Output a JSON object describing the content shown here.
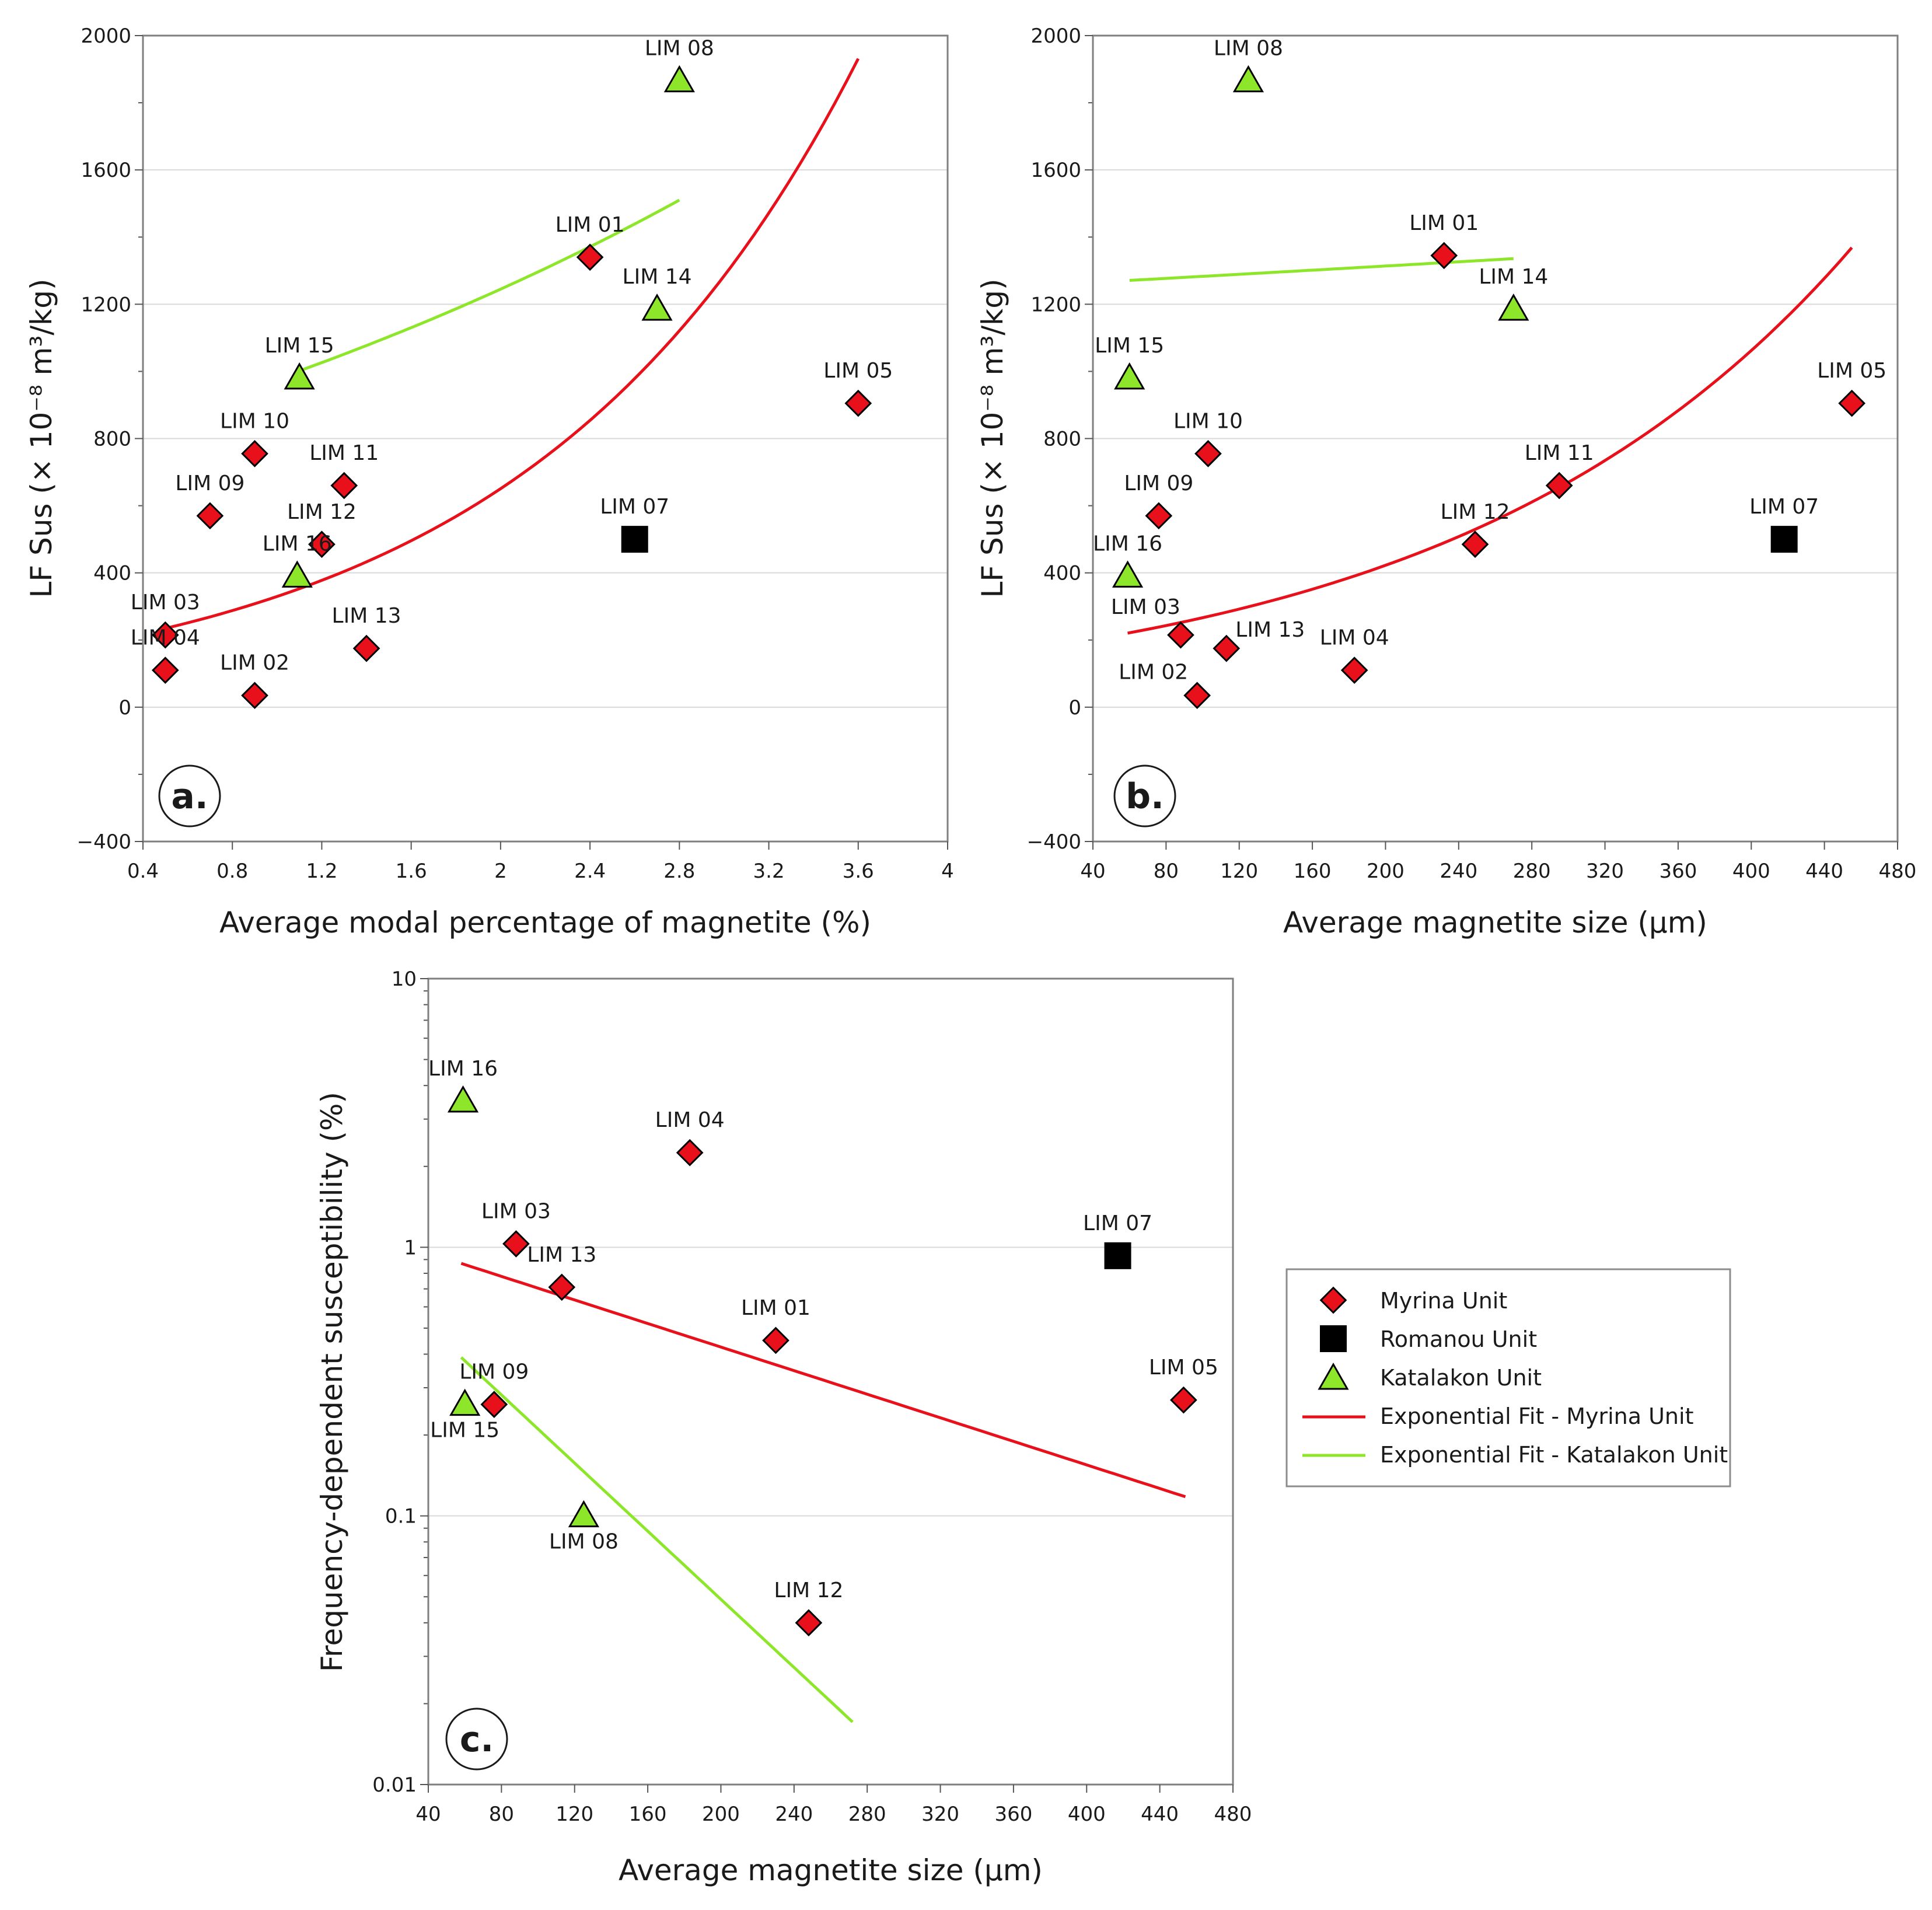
{
  "legend": {
    "items": [
      {
        "label": "Myrina Unit",
        "kind": "diamond",
        "color": "#e8101a"
      },
      {
        "label": "Romanou Unit",
        "kind": "square",
        "color": "#000000"
      },
      {
        "label": "Katalakon Unit",
        "kind": "triangle",
        "color": "#8ee62a"
      },
      {
        "label": "Exponential Fit - Myrina Unit",
        "kind": "line",
        "color": "#e8101a"
      },
      {
        "label": "Exponential Fit - Katalakon Unit",
        "kind": "line",
        "color": "#8ee62a"
      }
    ]
  },
  "colors": {
    "myrina": "#e8101a",
    "romanou": "#000000",
    "katalakon": "#8ee62a",
    "grid": "#d9d9d9"
  },
  "chart_data": [
    {
      "id": "a",
      "badge": "a.",
      "type": "scatter",
      "xlabel": "Average modal percentage of magnetite (%)",
      "ylabel": "LF Sus (× 10⁻⁸ m³/kg)",
      "xlim": [
        0.4,
        4
      ],
      "ylim": [
        -400,
        2000
      ],
      "xticks": [
        0.4,
        0.8,
        1.2,
        1.6,
        2,
        2.4,
        2.8,
        3.2,
        3.6,
        4
      ],
      "xtick_labels": [
        "0.4",
        "0.8",
        "1.2",
        "1.6",
        "2",
        "2.4",
        "2.8",
        "3.2",
        "3.6",
        "4"
      ],
      "yticks": [
        -400,
        0,
        400,
        800,
        1200,
        1600,
        2000
      ],
      "ytick_labels": [
        "−400",
        "0",
        "400",
        "800",
        "1200",
        "1600",
        "2000"
      ],
      "log_y": false,
      "grid": true,
      "points": [
        {
          "label": "LIM 01",
          "unit": "myrina",
          "x": 2.4,
          "y": 1340,
          "lx": 0,
          "ly": -44,
          "anchor": "middle"
        },
        {
          "label": "LIM 02",
          "unit": "myrina",
          "x": 0.9,
          "y": 35,
          "lx": 0,
          "ly": -44,
          "anchor": "middle"
        },
        {
          "label": "LIM 03",
          "unit": "myrina",
          "x": 0.5,
          "y": 215,
          "lx": 0,
          "ly": -44,
          "anchor": "middle"
        },
        {
          "label": "LIM 04",
          "unit": "myrina",
          "x": 0.5,
          "y": 110,
          "lx": 0,
          "ly": -44,
          "anchor": "middle"
        },
        {
          "label": "LIM 05",
          "unit": "myrina",
          "x": 3.6,
          "y": 905,
          "lx": 0,
          "ly": -44,
          "anchor": "middle"
        },
        {
          "label": "LIM 07",
          "unit": "romanou",
          "x": 2.6,
          "y": 500,
          "lx": 0,
          "ly": -44,
          "anchor": "middle"
        },
        {
          "label": "LIM 08",
          "unit": "katalakon",
          "x": 2.8,
          "y": 1865,
          "lx": 0,
          "ly": -44,
          "anchor": "middle"
        },
        {
          "label": "LIM 09",
          "unit": "myrina",
          "x": 0.7,
          "y": 570,
          "lx": 0,
          "ly": -44,
          "anchor": "middle"
        },
        {
          "label": "LIM 10",
          "unit": "myrina",
          "x": 0.9,
          "y": 755,
          "lx": 0,
          "ly": -44,
          "anchor": "middle"
        },
        {
          "label": "LIM 11",
          "unit": "myrina",
          "x": 1.3,
          "y": 660,
          "lx": 0,
          "ly": -44,
          "anchor": "middle"
        },
        {
          "label": "LIM 12",
          "unit": "myrina",
          "x": 1.2,
          "y": 485,
          "lx": 0,
          "ly": -44,
          "anchor": "middle"
        },
        {
          "label": "LIM 13",
          "unit": "myrina",
          "x": 1.4,
          "y": 175,
          "lx": 0,
          "ly": -44,
          "anchor": "middle"
        },
        {
          "label": "LIM 14",
          "unit": "katalakon",
          "x": 2.7,
          "y": 1185,
          "lx": 0,
          "ly": -44,
          "anchor": "middle"
        },
        {
          "label": "LIM 15",
          "unit": "katalakon",
          "x": 1.1,
          "y": 980,
          "lx": 0,
          "ly": -44,
          "anchor": "middle"
        },
        {
          "label": "LIM 16",
          "unit": "katalakon",
          "x": 1.09,
          "y": 390,
          "lx": 0,
          "ly": -44,
          "anchor": "middle"
        }
      ],
      "fits": [
        {
          "unit": "myrina",
          "type": "exponential",
          "a": 167,
          "b": 0.68,
          "x_range": [
            0.5,
            3.6
          ]
        },
        {
          "unit": "katalakon",
          "type": "exponential",
          "a": 768,
          "b": 0.2415,
          "x_range": [
            1.1,
            2.8
          ]
        }
      ]
    },
    {
      "id": "b",
      "badge": "b.",
      "type": "scatter",
      "xlabel": "Average magnetite size (µm)",
      "ylabel": "LF Sus (× 10⁻⁸ m³/kg)",
      "xlim": [
        40,
        480
      ],
      "ylim": [
        -400,
        2000
      ],
      "xticks": [
        40,
        80,
        120,
        160,
        200,
        240,
        280,
        320,
        360,
        400,
        440,
        480
      ],
      "xtick_labels": [
        "40",
        "80",
        "120",
        "160",
        "200",
        "240",
        "280",
        "320",
        "360",
        "400",
        "440",
        "480"
      ],
      "yticks": [
        -400,
        0,
        400,
        800,
        1200,
        1600,
        2000
      ],
      "ytick_labels": [
        "−400",
        "0",
        "400",
        "800",
        "1200",
        "1600",
        "2000"
      ],
      "log_y": false,
      "grid": true,
      "points": [
        {
          "label": "LIM 01",
          "unit": "myrina",
          "x": 232,
          "y": 1345,
          "lx": 0,
          "ly": -44,
          "anchor": "middle"
        },
        {
          "label": "LIM 02",
          "unit": "myrina",
          "x": 97,
          "y": 35,
          "lx": -75,
          "ly": -28,
          "anchor": "middle"
        },
        {
          "label": "LIM 03",
          "unit": "myrina",
          "x": 88,
          "y": 215,
          "lx": -60,
          "ly": -36,
          "anchor": "middle"
        },
        {
          "label": "LIM 04",
          "unit": "myrina",
          "x": 183,
          "y": 110,
          "lx": 0,
          "ly": -44,
          "anchor": "middle"
        },
        {
          "label": "LIM 05",
          "unit": "myrina",
          "x": 455,
          "y": 905,
          "lx": 0,
          "ly": -44,
          "anchor": "middle"
        },
        {
          "label": "LIM 07",
          "unit": "romanou",
          "x": 418,
          "y": 500,
          "lx": 0,
          "ly": -44,
          "anchor": "middle"
        },
        {
          "label": "LIM 08",
          "unit": "katalakon",
          "x": 125,
          "y": 1865,
          "lx": 0,
          "ly": -44,
          "anchor": "middle"
        },
        {
          "label": "LIM 09",
          "unit": "myrina",
          "x": 76,
          "y": 570,
          "lx": 0,
          "ly": -44,
          "anchor": "middle"
        },
        {
          "label": "LIM 10",
          "unit": "myrina",
          "x": 103,
          "y": 755,
          "lx": 0,
          "ly": -44,
          "anchor": "middle"
        },
        {
          "label": "LIM 11",
          "unit": "myrina",
          "x": 295,
          "y": 660,
          "lx": 0,
          "ly": -44,
          "anchor": "middle"
        },
        {
          "label": "LIM 12",
          "unit": "myrina",
          "x": 249,
          "y": 485,
          "lx": 0,
          "ly": -44,
          "anchor": "middle"
        },
        {
          "label": "LIM 13",
          "unit": "myrina",
          "x": 113,
          "y": 175,
          "lx": 75,
          "ly": -20,
          "anchor": "middle"
        },
        {
          "label": "LIM 14",
          "unit": "katalakon",
          "x": 270,
          "y": 1185,
          "lx": 0,
          "ly": -44,
          "anchor": "middle"
        },
        {
          "label": "LIM 15",
          "unit": "katalakon",
          "x": 60,
          "y": 980,
          "lx": 0,
          "ly": -44,
          "anchor": "middle"
        },
        {
          "label": "LIM 16",
          "unit": "katalakon",
          "x": 59,
          "y": 390,
          "lx": 0,
          "ly": -44,
          "anchor": "middle"
        }
      ],
      "fits": [
        {
          "unit": "myrina",
          "type": "exponential",
          "a": 168,
          "b": 0.00461,
          "x_range": [
            59,
            455
          ]
        },
        {
          "unit": "katalakon",
          "type": "exponential",
          "a": 1253,
          "b": 0.000237,
          "x_range": [
            60,
            270
          ]
        }
      ]
    },
    {
      "id": "c",
      "badge": "c.",
      "type": "scatter",
      "xlabel": "Average magnetite size (µm)",
      "ylabel": "Frequency-dependent susceptibility (%)",
      "xlim": [
        40,
        480
      ],
      "ylim": [
        0.01,
        10
      ],
      "xticks": [
        40,
        80,
        120,
        160,
        200,
        240,
        280,
        320,
        360,
        400,
        440,
        480
      ],
      "xtick_labels": [
        "40",
        "80",
        "120",
        "160",
        "200",
        "240",
        "280",
        "320",
        "360",
        "400",
        "440",
        "480"
      ],
      "yticks": [
        0.01,
        0.1,
        1,
        10
      ],
      "ytick_labels": [
        "0.01",
        "0.1",
        "1",
        "10"
      ],
      "log_y": true,
      "grid": true,
      "points": [
        {
          "label": "LIM 01",
          "unit": "myrina",
          "x": 230,
          "y": 0.45,
          "lx": 0,
          "ly": -44,
          "anchor": "middle"
        },
        {
          "label": "LIM 03",
          "unit": "myrina",
          "x": 88,
          "y": 1.03,
          "lx": 0,
          "ly": -44,
          "anchor": "middle"
        },
        {
          "label": "LIM 04",
          "unit": "myrina",
          "x": 183,
          "y": 2.25,
          "lx": 0,
          "ly": -44,
          "anchor": "middle"
        },
        {
          "label": "LIM 05",
          "unit": "myrina",
          "x": 453,
          "y": 0.27,
          "lx": 0,
          "ly": -44,
          "anchor": "middle"
        },
        {
          "label": "LIM 07",
          "unit": "romanou",
          "x": 417,
          "y": 0.93,
          "lx": 0,
          "ly": -44,
          "anchor": "middle"
        },
        {
          "label": "LIM 08",
          "unit": "katalakon",
          "x": 125,
          "y": 0.1,
          "lx": 0,
          "ly": 56,
          "anchor": "middle"
        },
        {
          "label": "LIM 09",
          "unit": "myrina",
          "x": 76,
          "y": 0.26,
          "lx": 0,
          "ly": -44,
          "anchor": "middle"
        },
        {
          "label": "LIM 12",
          "unit": "myrina",
          "x": 248,
          "y": 0.04,
          "lx": 0,
          "ly": -44,
          "anchor": "middle"
        },
        {
          "label": "LIM 13",
          "unit": "myrina",
          "x": 113,
          "y": 0.71,
          "lx": 0,
          "ly": -44,
          "anchor": "middle"
        },
        {
          "label": "LIM 15",
          "unit": "katalakon",
          "x": 60,
          "y": 0.26,
          "lx": 0,
          "ly": 56,
          "anchor": "middle"
        },
        {
          "label": "LIM 16",
          "unit": "katalakon",
          "x": 59,
          "y": 3.5,
          "lx": 0,
          "ly": -44,
          "anchor": "middle"
        }
      ],
      "fits": [
        {
          "unit": "myrina",
          "type": "exponential",
          "a": 1.167,
          "b": -0.00505,
          "x_range": [
            58,
            454
          ]
        },
        {
          "unit": "katalakon",
          "type": "exponential",
          "a": 0.907,
          "b": -0.0146,
          "x_range": [
            58,
            272
          ]
        }
      ]
    }
  ]
}
